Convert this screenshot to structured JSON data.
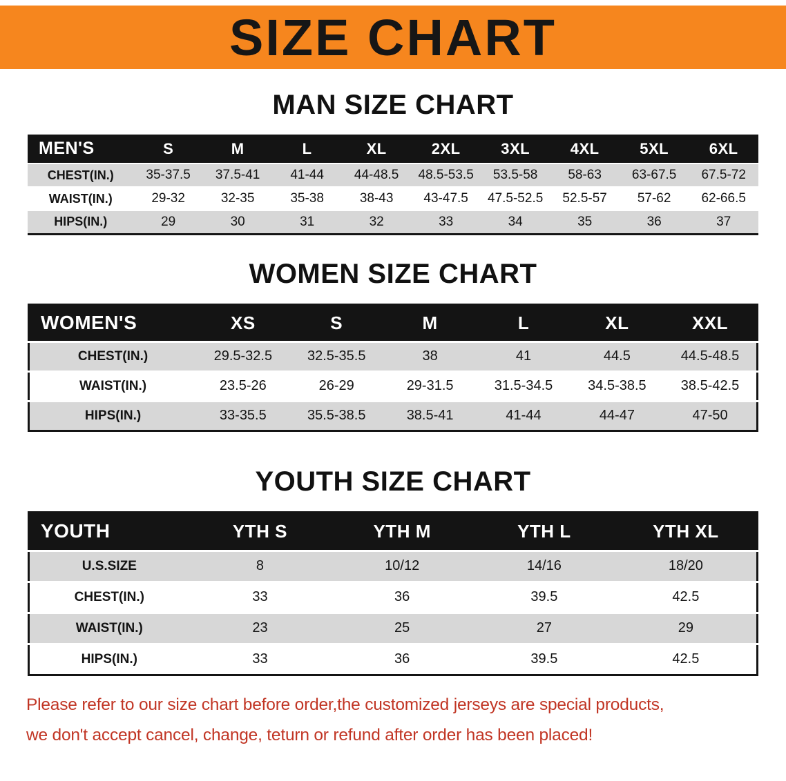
{
  "banner": {
    "title": "SIZE CHART",
    "bg_color": "#F6861E"
  },
  "chart_data": [
    {
      "type": "table",
      "title": "MAN SIZE CHART",
      "columns": [
        "MEN'S",
        "S",
        "M",
        "L",
        "XL",
        "2XL",
        "3XL",
        "4XL",
        "5XL",
        "6XL"
      ],
      "rows": [
        [
          "CHEST(IN.)",
          "35-37.5",
          "37.5-41",
          "41-44",
          "44-48.5",
          "48.5-53.5",
          "53.5-58",
          "58-63",
          "63-67.5",
          "67.5-72"
        ],
        [
          "WAIST(IN.)",
          "29-32",
          "32-35",
          "35-38",
          "38-43",
          "43-47.5",
          "47.5-52.5",
          "52.5-57",
          "57-62",
          "62-66.5"
        ],
        [
          "HIPS(IN.)",
          "29",
          "30",
          "31",
          "32",
          "33",
          "34",
          "35",
          "36",
          "37"
        ]
      ]
    },
    {
      "type": "table",
      "title": "WOMEN SIZE CHART",
      "columns": [
        "WOMEN'S",
        "XS",
        "S",
        "M",
        "L",
        "XL",
        "XXL"
      ],
      "rows": [
        [
          "CHEST(IN.)",
          "29.5-32.5",
          "32.5-35.5",
          "38",
          "41",
          "44.5",
          "44.5-48.5"
        ],
        [
          "WAIST(IN.)",
          "23.5-26",
          "26-29",
          "29-31.5",
          "31.5-34.5",
          "34.5-38.5",
          "38.5-42.5"
        ],
        [
          "HIPS(IN.)",
          "33-35.5",
          "35.5-38.5",
          "38.5-41",
          "41-44",
          "44-47",
          "47-50"
        ]
      ]
    },
    {
      "type": "table",
      "title": "YOUTH SIZE CHART",
      "columns": [
        "YOUTH",
        "YTH S",
        "YTH M",
        "YTH L",
        "YTH XL"
      ],
      "rows": [
        [
          "U.S.SIZE",
          "8",
          "10/12",
          "14/16",
          "18/20"
        ],
        [
          "CHEST(IN.)",
          "33",
          "36",
          "39.5",
          "42.5"
        ],
        [
          "WAIST(IN.)",
          "23",
          "25",
          "27",
          "29"
        ],
        [
          "HIPS(IN.)",
          "33",
          "36",
          "39.5",
          "42.5"
        ]
      ]
    }
  ],
  "footer": {
    "line1": "Please refer to our size chart before order,the customized jerseys are special products,",
    "line2": "we don't accept cancel, change, teturn or refund after order has been placed!",
    "text_color": "#C13524"
  }
}
